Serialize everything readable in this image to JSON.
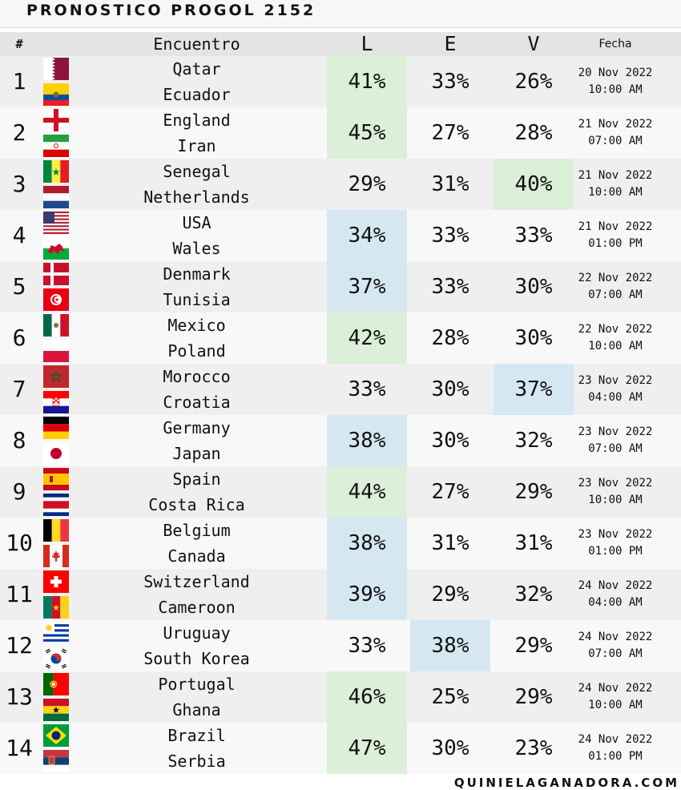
{
  "title": "PRONOSTICO PROGOL 2152",
  "header": {
    "num": "#",
    "match": "Encuentro",
    "l": "L",
    "e": "E",
    "v": "V",
    "date": "Fecha"
  },
  "colors": {
    "highlight_green": "#dcefd8",
    "highlight_blue": "#d5e8f2"
  },
  "rows": [
    {
      "num": "1",
      "home": "Qatar",
      "away": "Ecuador",
      "l": "41%",
      "e": "33%",
      "v": "26%",
      "date": "20 Nov 2022",
      "time": "10:00 AM",
      "hl": "l",
      "hl_color": "green",
      "home_flag": "qatar-flag-icon",
      "away_flag": "ecuador-flag-icon"
    },
    {
      "num": "2",
      "home": "England",
      "away": "Iran",
      "l": "45%",
      "e": "27%",
      "v": "28%",
      "date": "21 Nov 2022",
      "time": "07:00 AM",
      "hl": "l",
      "hl_color": "green",
      "home_flag": "england-flag-icon",
      "away_flag": "iran-flag-icon"
    },
    {
      "num": "3",
      "home": "Senegal",
      "away": "Netherlands",
      "l": "29%",
      "e": "31%",
      "v": "40%",
      "date": "21 Nov 2022",
      "time": "10:00 AM",
      "hl": "v",
      "hl_color": "green",
      "home_flag": "senegal-flag-icon",
      "away_flag": "netherlands-flag-icon"
    },
    {
      "num": "4",
      "home": "USA",
      "away": "Wales",
      "l": "34%",
      "e": "33%",
      "v": "33%",
      "date": "21 Nov 2022",
      "time": "01:00 PM",
      "hl": "l",
      "hl_color": "blue",
      "home_flag": "usa-flag-icon",
      "away_flag": "wales-flag-icon"
    },
    {
      "num": "5",
      "home": "Denmark",
      "away": "Tunisia",
      "l": "37%",
      "e": "33%",
      "v": "30%",
      "date": "22 Nov 2022",
      "time": "07:00 AM",
      "hl": "l",
      "hl_color": "blue",
      "home_flag": "denmark-flag-icon",
      "away_flag": "tunisia-flag-icon"
    },
    {
      "num": "6",
      "home": "Mexico",
      "away": "Poland",
      "l": "42%",
      "e": "28%",
      "v": "30%",
      "date": "22 Nov 2022",
      "time": "10:00 AM",
      "hl": "l",
      "hl_color": "green",
      "home_flag": "mexico-flag-icon",
      "away_flag": "poland-flag-icon"
    },
    {
      "num": "7",
      "home": "Morocco",
      "away": "Croatia",
      "l": "33%",
      "e": "30%",
      "v": "37%",
      "date": "23 Nov 2022",
      "time": "04:00 AM",
      "hl": "v",
      "hl_color": "blue",
      "home_flag": "morocco-flag-icon",
      "away_flag": "croatia-flag-icon"
    },
    {
      "num": "8",
      "home": "Germany",
      "away": "Japan",
      "l": "38%",
      "e": "30%",
      "v": "32%",
      "date": "23 Nov 2022",
      "time": "07:00 AM",
      "hl": "l",
      "hl_color": "blue",
      "home_flag": "germany-flag-icon",
      "away_flag": "japan-flag-icon"
    },
    {
      "num": "9",
      "home": "Spain",
      "away": "Costa Rica",
      "l": "44%",
      "e": "27%",
      "v": "29%",
      "date": "23 Nov 2022",
      "time": "10:00 AM",
      "hl": "l",
      "hl_color": "green",
      "home_flag": "spain-flag-icon",
      "away_flag": "costa-rica-flag-icon"
    },
    {
      "num": "10",
      "home": "Belgium",
      "away": "Canada",
      "l": "38%",
      "e": "31%",
      "v": "31%",
      "date": "23 Nov 2022",
      "time": "01:00 PM",
      "hl": "l",
      "hl_color": "blue",
      "home_flag": "belgium-flag-icon",
      "away_flag": "canada-flag-icon"
    },
    {
      "num": "11",
      "home": "Switzerland",
      "away": "Cameroon",
      "l": "39%",
      "e": "29%",
      "v": "32%",
      "date": "24 Nov 2022",
      "time": "04:00 AM",
      "hl": "l",
      "hl_color": "blue",
      "home_flag": "switzerland-flag-icon",
      "away_flag": "cameroon-flag-icon"
    },
    {
      "num": "12",
      "home": "Uruguay",
      "away": "South Korea",
      "l": "33%",
      "e": "38%",
      "v": "29%",
      "date": "24 Nov 2022",
      "time": "07:00 AM",
      "hl": "e",
      "hl_color": "blue",
      "home_flag": "uruguay-flag-icon",
      "away_flag": "south-korea-flag-icon"
    },
    {
      "num": "13",
      "home": "Portugal",
      "away": "Ghana",
      "l": "46%",
      "e": "25%",
      "v": "29%",
      "date": "24 Nov 2022",
      "time": "10:00 AM",
      "hl": "l",
      "hl_color": "green",
      "home_flag": "portugal-flag-icon",
      "away_flag": "ghana-flag-icon"
    },
    {
      "num": "14",
      "home": "Brazil",
      "away": "Serbia",
      "l": "47%",
      "e": "30%",
      "v": "23%",
      "date": "24 Nov 2022",
      "time": "01:00 PM",
      "hl": "l",
      "hl_color": "green",
      "home_flag": "brazil-flag-icon",
      "away_flag": "serbia-flag-icon"
    }
  ],
  "footer": "QUINIELAGANADORA.COM"
}
